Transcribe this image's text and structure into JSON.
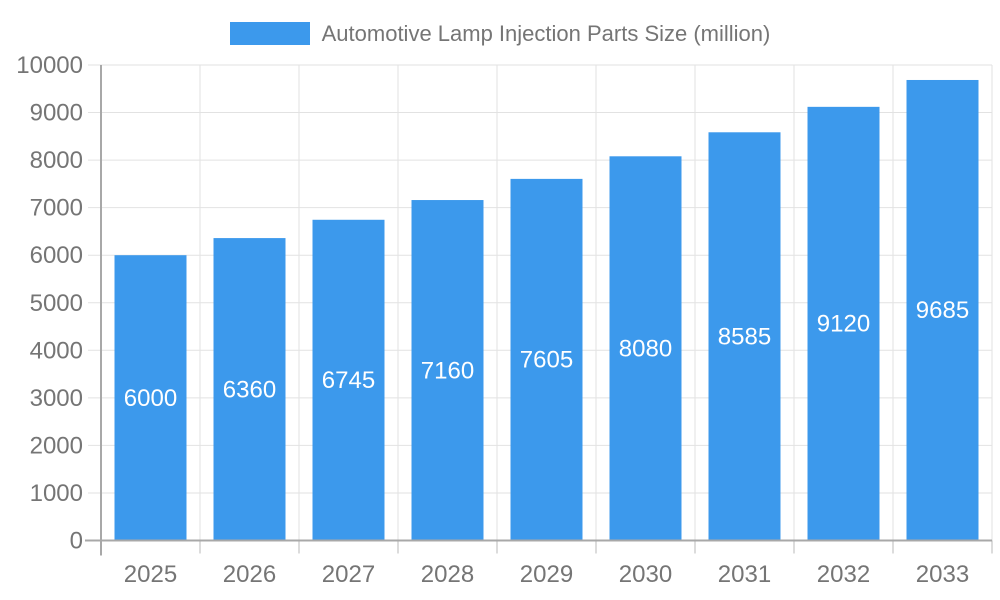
{
  "chart_data": {
    "type": "bar",
    "title": "Automotive Lamp Injection Parts Size (million)",
    "legend": {
      "label": "Automotive Lamp Injection Parts Size (million)",
      "position": "top"
    },
    "categories": [
      "2025",
      "2026",
      "2027",
      "2028",
      "2029",
      "2030",
      "2031",
      "2032",
      "2033"
    ],
    "values": [
      6000,
      6360,
      6745,
      7160,
      7605,
      8080,
      8585,
      9120,
      9685
    ],
    "xlabel": "",
    "ylabel": "",
    "ylim": [
      0,
      10000
    ],
    "ytick_step": 1000,
    "ytick_labels": [
      "0",
      "1000",
      "2000",
      "3000",
      "4000",
      "5000",
      "6000",
      "7000",
      "8000",
      "9000",
      "10000"
    ],
    "grid": true,
    "bar_value_labels_shown": true,
    "colors": {
      "bar": "#3C99EC",
      "bar_value_label": "#FFFFFF",
      "grid": "#E2E2E2",
      "axis": "#A8A8A8",
      "tick": "#B9B9B9",
      "tick_label": "#757575",
      "legend_label": "#757575",
      "background": "#FFFFFF"
    }
  }
}
